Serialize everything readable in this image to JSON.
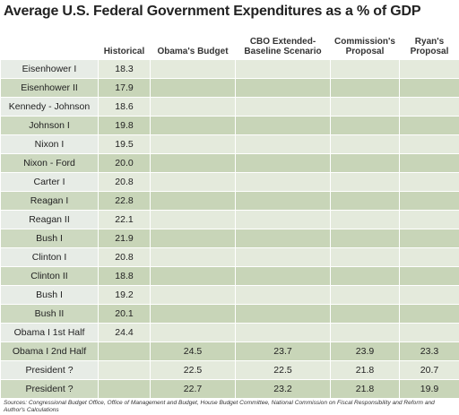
{
  "header": {
    "title": "Average U.S. Federal Government Expenditures as a % of GDP"
  },
  "table": {
    "columns": [
      null,
      "Historical",
      "Obama's Budget",
      "CBO Extended-Baseline Scenario",
      "Commission's Proposal",
      "Ryan's Proposal"
    ],
    "rows": [
      [
        "Eisenhower I",
        "18.3",
        null,
        null,
        null,
        null
      ],
      [
        "Eisenhower II",
        "17.9",
        null,
        null,
        null,
        null
      ],
      [
        "Kennedy - Johnson",
        "18.6",
        null,
        null,
        null,
        null
      ],
      [
        "Johnson I",
        "19.8",
        null,
        null,
        null,
        null
      ],
      [
        "Nixon I",
        "19.5",
        null,
        null,
        null,
        null
      ],
      [
        "Nixon - Ford",
        "20.0",
        null,
        null,
        null,
        null
      ],
      [
        "Carter I",
        "20.8",
        null,
        null,
        null,
        null
      ],
      [
        "Reagan I",
        "22.8",
        null,
        null,
        null,
        null
      ],
      [
        "Reagan II",
        "22.1",
        null,
        null,
        null,
        null
      ],
      [
        "Bush I",
        "21.9",
        null,
        null,
        null,
        null
      ],
      [
        "Clinton I",
        "20.8",
        null,
        null,
        null,
        null
      ],
      [
        "Clinton II",
        "18.8",
        null,
        null,
        null,
        null
      ],
      [
        "Bush I",
        "19.2",
        null,
        null,
        null,
        null
      ],
      [
        "Bush II",
        "20.1",
        null,
        null,
        null,
        null
      ],
      [
        "Obama I 1st Half",
        "24.4",
        null,
        null,
        null,
        null
      ],
      [
        "Obama I 2nd Half",
        null,
        "24.5",
        "23.7",
        "23.9",
        "23.3"
      ],
      [
        "President ?",
        null,
        "22.5",
        "22.5",
        "21.8",
        "20.7"
      ],
      [
        "President ?",
        null,
        "22.7",
        "23.2",
        "21.8",
        "19.9"
      ]
    ]
  },
  "footer": {
    "sources": "Sources: Congressional Budget Office, Office of Management and Budget, House Budget Committee, National Commission on Fiscal Responsibility and Reform and Author's Calculations"
  }
}
